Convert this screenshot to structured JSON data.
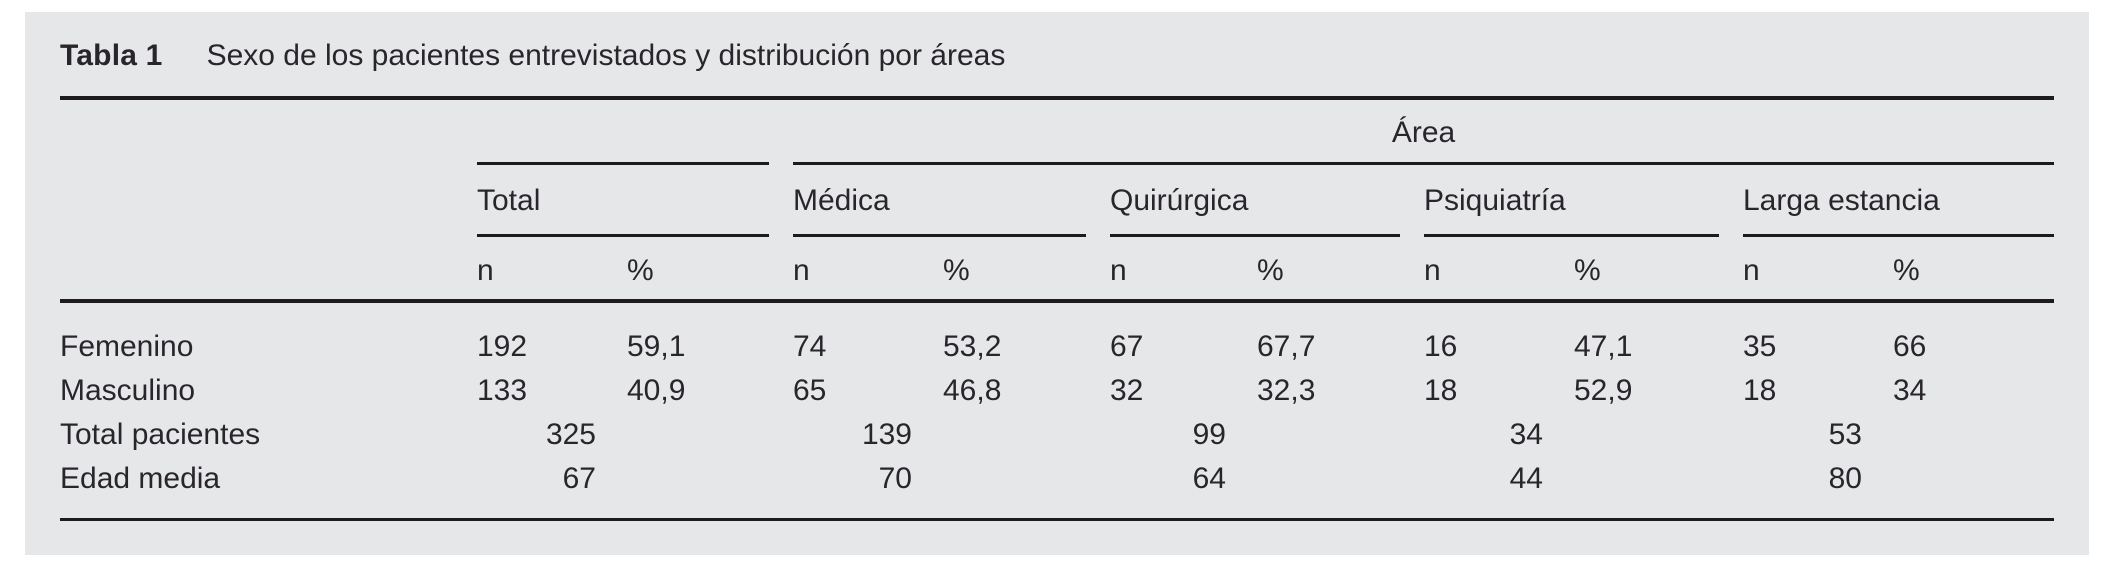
{
  "colors": {
    "panel_background": "#e6e7e9",
    "rule": "#1d1b1e",
    "text": "#29262b"
  },
  "table": {
    "label": "Tabla 1",
    "title": "Sexo de los pacientes entrevistados y distribución por áreas",
    "area_header": "Área",
    "groups": [
      {
        "name": "Total"
      },
      {
        "name": "Médica"
      },
      {
        "name": "Quirúrgica"
      },
      {
        "name": "Psiquiatría"
      },
      {
        "name": "Larga estancia"
      }
    ],
    "subheaders": {
      "n": "n",
      "pct": "%"
    },
    "rows": [
      {
        "label": "Femenino",
        "cells": [
          "192",
          "59,1",
          "74",
          "53,2",
          "67",
          "67,7",
          "16",
          "47,1",
          "35",
          "66"
        ]
      },
      {
        "label": "Masculino",
        "cells": [
          "133",
          "40,9",
          "65",
          "46,8",
          "32",
          "32,3",
          "18",
          "52,9",
          "18",
          "34"
        ]
      },
      {
        "label": "Total pacientes",
        "spans": [
          "325",
          "139",
          "99",
          "34",
          "53"
        ]
      },
      {
        "label": "Edad media",
        "spans": [
          "67",
          "70",
          "64",
          "44",
          "80"
        ]
      }
    ]
  },
  "chart_data": {
    "type": "table",
    "title": "Tabla 1  Sexo de los pacientes entrevistados y distribución por áreas",
    "column_groups": [
      "Total",
      "Médica",
      "Quirúrgica",
      "Psiquiatría",
      "Larga estancia"
    ],
    "subcolumns": [
      "n",
      "%"
    ],
    "rows": [
      {
        "label": "Femenino",
        "values": {
          "Total": {
            "n": 192,
            "pct": 59.1
          },
          "Médica": {
            "n": 74,
            "pct": 53.2
          },
          "Quirúrgica": {
            "n": 67,
            "pct": 67.7
          },
          "Psiquiatría": {
            "n": 16,
            "pct": 47.1
          },
          "Larga estancia": {
            "n": 35,
            "pct": 66
          }
        }
      },
      {
        "label": "Masculino",
        "values": {
          "Total": {
            "n": 133,
            "pct": 40.9
          },
          "Médica": {
            "n": 65,
            "pct": 46.8
          },
          "Quirúrgica": {
            "n": 32,
            "pct": 32.3
          },
          "Psiquiatría": {
            "n": 18,
            "pct": 52.9
          },
          "Larga estancia": {
            "n": 18,
            "pct": 34
          }
        }
      },
      {
        "label": "Total pacientes",
        "values": {
          "Total": 325,
          "Médica": 139,
          "Quirúrgica": 99,
          "Psiquiatría": 34,
          "Larga estancia": 53
        }
      },
      {
        "label": "Edad media",
        "values": {
          "Total": 67,
          "Médica": 70,
          "Quirúrgica": 64,
          "Psiquiatría": 44,
          "Larga estancia": 80
        }
      }
    ]
  }
}
